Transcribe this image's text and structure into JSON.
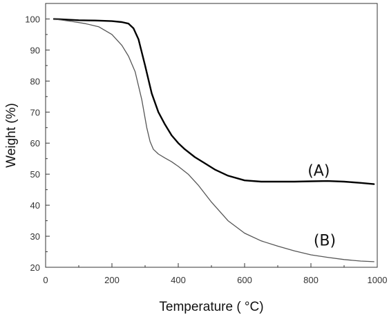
{
  "chart_data": {
    "type": "line",
    "title": "",
    "xlabel": "Temperature ( °C)",
    "ylabel": "Weight (%)",
    "xlim": [
      0,
      1000
    ],
    "ylim": [
      20,
      105
    ],
    "x_ticks": [
      0,
      200,
      400,
      600,
      800,
      1000
    ],
    "y_ticks": [
      20,
      30,
      40,
      50,
      60,
      70,
      80,
      90,
      100
    ],
    "grid": false,
    "legend": "none",
    "series": [
      {
        "name": "(A)",
        "color": "#000000",
        "x": [
          25,
          100,
          150,
          200,
          230,
          250,
          265,
          280,
          300,
          320,
          340,
          360,
          380,
          400,
          420,
          450,
          480,
          510,
          550,
          600,
          650,
          700,
          750,
          800,
          850,
          900,
          950,
          990
        ],
        "y": [
          100,
          99.6,
          99.5,
          99.3,
          99.0,
          98.5,
          97,
          93.5,
          85,
          76,
          70,
          66,
          62.5,
          60,
          58,
          55.5,
          53.5,
          51.5,
          49.5,
          48,
          47.6,
          47.6,
          47.6,
          47.7,
          47.8,
          47.6,
          47.2,
          46.8
        ]
      },
      {
        "name": "(B)",
        "color": "#555555",
        "x": [
          25,
          80,
          120,
          160,
          200,
          230,
          250,
          270,
          290,
          305,
          315,
          325,
          340,
          360,
          380,
          400,
          430,
          460,
          500,
          550,
          600,
          650,
          700,
          750,
          800,
          850,
          900,
          950,
          990
        ],
        "y": [
          100,
          99.2,
          98.5,
          97.5,
          95,
          91.5,
          88,
          83,
          74,
          65,
          60.5,
          58,
          56.5,
          55.2,
          54,
          52.5,
          50,
          46.5,
          41,
          35,
          31,
          28.5,
          26.8,
          25.3,
          24,
          23.2,
          22.5,
          22,
          21.8
        ]
      }
    ]
  }
}
